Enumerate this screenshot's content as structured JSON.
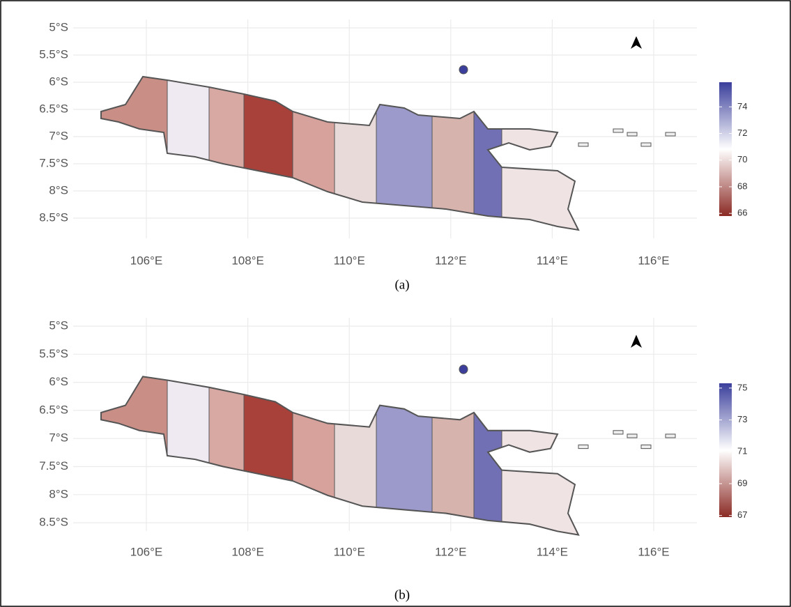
{
  "panels": [
    {
      "lat_ticks": [
        {
          "value": -5,
          "label": "5°S"
        },
        {
          "value": -5.5,
          "label": "5.5°S"
        },
        {
          "value": -6,
          "label": "6°S"
        },
        {
          "value": -6.5,
          "label": "6.5°S"
        },
        {
          "value": -7,
          "label": "7°S"
        },
        {
          "value": -7.5,
          "label": "7.5°S"
        },
        {
          "value": -8,
          "label": "8°S"
        },
        {
          "value": -8.5,
          "label": "8.5°S"
        }
      ],
      "lon_ticks": [
        {
          "value": 106,
          "label": "106°E"
        },
        {
          "value": 108,
          "label": "108°E"
        },
        {
          "value": 110,
          "label": "110°E"
        },
        {
          "value": 112,
          "label": "112°E"
        },
        {
          "value": 114,
          "label": "114°E"
        },
        {
          "value": 116,
          "label": "116°E"
        }
      ],
      "legend": {
        "limits": [
          65.8,
          75.85
        ],
        "ticks": [
          74,
          72,
          70,
          68,
          66
        ],
        "low_color": "#8b2a24",
        "mid_color": "#ffffff",
        "high_color": "#3b3f9b"
      },
      "caption": "(a)"
    },
    {
      "lat_ticks": [
        {
          "value": -5,
          "label": "5°S"
        },
        {
          "value": -5.5,
          "label": "5.5°S"
        },
        {
          "value": -6,
          "label": "6°S"
        },
        {
          "value": -6.5,
          "label": "6.5°S"
        },
        {
          "value": -7,
          "label": "7°S"
        },
        {
          "value": -7.5,
          "label": "7.5°S"
        },
        {
          "value": -8,
          "label": "8°S"
        },
        {
          "value": -8.5,
          "label": "8.5°S"
        }
      ],
      "lon_ticks": [
        {
          "value": 106,
          "label": "106°E"
        },
        {
          "value": 108,
          "label": "108°E"
        },
        {
          "value": 110,
          "label": "110°E"
        },
        {
          "value": 112,
          "label": "112°E"
        },
        {
          "value": 114,
          "label": "114°E"
        },
        {
          "value": 116,
          "label": "116°E"
        }
      ],
      "legend": {
        "limits": [
          66.9,
          75.3
        ],
        "ticks": [
          75,
          73,
          71,
          69,
          67
        ],
        "low_color": "#8b2a24",
        "mid_color": "#ffffff",
        "high_color": "#3b3f9b"
      },
      "caption": "(b)"
    }
  ]
}
